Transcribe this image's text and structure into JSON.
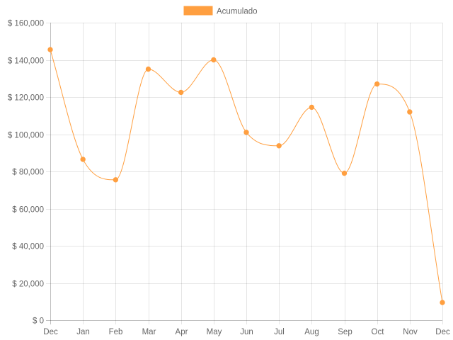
{
  "chart_data": {
    "type": "line",
    "categories": [
      "Dec",
      "Jan",
      "Feb",
      "Mar",
      "Apr",
      "May",
      "Jun",
      "Jul",
      "Aug",
      "Sep",
      "Oct",
      "Nov",
      "Dec"
    ],
    "series": [
      {
        "name": "Acumulado",
        "color": "#ff9f40",
        "values": [
          145500,
          86500,
          75500,
          135000,
          122500,
          140000,
          101000,
          93800,
          114500,
          79000,
          127000,
          112000,
          9500
        ]
      }
    ],
    "y_tick_labels": [
      "$ 0",
      "$ 20,000",
      "$ 40,000",
      "$ 60,000",
      "$ 80,000",
      "$ 100,000",
      "$ 120,000",
      "$ 140,000",
      "$ 160,000"
    ],
    "ylim": [
      0,
      160000
    ],
    "y_step": 20000,
    "legend_position": "top-center",
    "grid": true,
    "smooth": true
  }
}
